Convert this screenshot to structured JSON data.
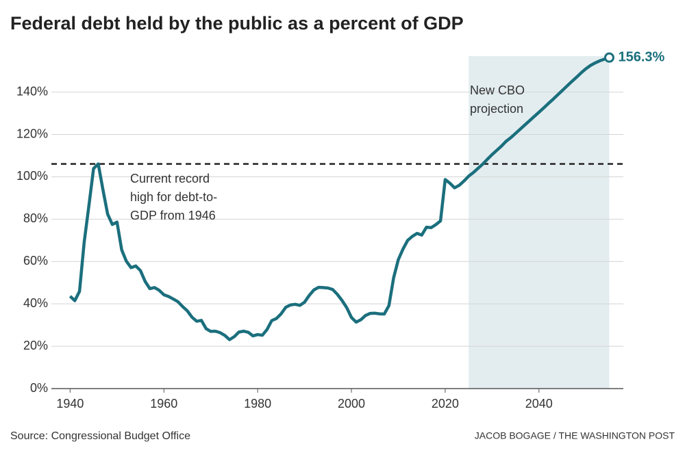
{
  "chart_data": {
    "type": "line",
    "title": "Federal debt held by the public as a percent of GDP",
    "x": [
      1940,
      1941,
      1942,
      1943,
      1944,
      1945,
      1946,
      1947,
      1948,
      1949,
      1950,
      1951,
      1952,
      1953,
      1954,
      1955,
      1956,
      1957,
      1958,
      1959,
      1960,
      1961,
      1962,
      1963,
      1964,
      1965,
      1966,
      1967,
      1968,
      1969,
      1970,
      1971,
      1972,
      1973,
      1974,
      1975,
      1976,
      1977,
      1978,
      1979,
      1980,
      1981,
      1982,
      1983,
      1984,
      1985,
      1986,
      1987,
      1988,
      1989,
      1990,
      1991,
      1992,
      1993,
      1994,
      1995,
      1996,
      1997,
      1998,
      1999,
      2000,
      2001,
      2002,
      2003,
      2004,
      2005,
      2006,
      2007,
      2008,
      2009,
      2010,
      2011,
      2012,
      2013,
      2014,
      2015,
      2016,
      2017,
      2018,
      2019,
      2020,
      2021,
      2022,
      2023,
      2024,
      2025,
      2026,
      2027,
      2028,
      2029,
      2030,
      2031,
      2032,
      2033,
      2034,
      2035,
      2036,
      2037,
      2038,
      2039,
      2040,
      2041,
      2042,
      2043,
      2044,
      2045,
      2046,
      2047,
      2048,
      2049,
      2050,
      2051,
      2052,
      2053,
      2054,
      2055
    ],
    "values": [
      43.6,
      41.5,
      45.9,
      69.2,
      86.3,
      103.9,
      106.1,
      93.9,
      82.4,
      77.5,
      78.6,
      65.5,
      60.1,
      57.1,
      57.9,
      55.7,
      50.6,
      47.2,
      47.7,
      46.4,
      44.3,
      43.5,
      42.3,
      41.0,
      38.7,
      36.7,
      33.7,
      31.8,
      32.2,
      28.3,
      27.0,
      27.1,
      26.4,
      25.1,
      23.1,
      24.5,
      26.7,
      27.1,
      26.6,
      24.9,
      25.5,
      25.2,
      27.9,
      32.1,
      33.1,
      35.3,
      38.4,
      39.5,
      39.8,
      39.3,
      40.8,
      44.0,
      46.6,
      47.8,
      47.7,
      47.5,
      46.8,
      44.5,
      41.6,
      38.2,
      33.6,
      31.4,
      32.5,
      34.5,
      35.5,
      35.6,
      35.3,
      35.2,
      39.2,
      52.3,
      60.9,
      65.9,
      70.0,
      71.9,
      73.3,
      72.5,
      76.2,
      76.0,
      77.4,
      79.2,
      98.7,
      97.0,
      94.8,
      96.0,
      98.0,
      100.3,
      102,
      104,
      106,
      108.3,
      110.5,
      112.5,
      114.5,
      116.8,
      118.5,
      120.5,
      122.5,
      124.5,
      126.5,
      128.5,
      130.5,
      132.5,
      134.6,
      136.6,
      138.7,
      140.8,
      142.9,
      145,
      147,
      149.1,
      151,
      152.6,
      153.8,
      154.8,
      155.6,
      156.3
    ],
    "value_labels": [
      null,
      null,
      null,
      null,
      null,
      null,
      null,
      null,
      null,
      null,
      null,
      null,
      null,
      null,
      null,
      null,
      null,
      null,
      null,
      null,
      null,
      null,
      null,
      null,
      null,
      null,
      null,
      null,
      null,
      null,
      null,
      null,
      null,
      null,
      null,
      null,
      null,
      null,
      null,
      null,
      null,
      null,
      null,
      null,
      null,
      null,
      null,
      null,
      null,
      null,
      null,
      null,
      null,
      null,
      null,
      null,
      null,
      null,
      null,
      null,
      null,
      null,
      null,
      null,
      null,
      null,
      null,
      null,
      null,
      null,
      null,
      null,
      null,
      null,
      null,
      null,
      null,
      null,
      null,
      null,
      null,
      null,
      null,
      null,
      null,
      null,
      null,
      null,
      null,
      null,
      null,
      null,
      null,
      null,
      null,
      null,
      null,
      null,
      null,
      null,
      null,
      null,
      null,
      null,
      null,
      null,
      null,
      null,
      null,
      null,
      null,
      null,
      null,
      null,
      null,
      "156.3%"
    ],
    "color": "#1b6f7d",
    "shade_color": "#e3edf0",
    "shaded_range": [
      2025,
      2055
    ],
    "xlim": [
      1936,
      2058
    ],
    "ylim": [
      0,
      157
    ],
    "xticks": [
      1940,
      1960,
      1980,
      2000,
      2020,
      2040
    ],
    "yticks": [
      {
        "value": 0,
        "label": "0%"
      },
      {
        "value": 20,
        "label": "20%"
      },
      {
        "value": 40,
        "label": "40%"
      },
      {
        "value": 60,
        "label": "60%"
      },
      {
        "value": 80,
        "label": "80%"
      },
      {
        "value": 100,
        "label": "100%"
      },
      {
        "value": 120,
        "label": "120%"
      },
      {
        "value": 140,
        "label": "140%"
      }
    ],
    "grid": true,
    "record_annotation": [
      "Current record",
      "high for debt-to-",
      "GDP from 1946"
    ],
    "projection_annotation": [
      "New CBO",
      "projection"
    ],
    "source": "Source: Congressional Budget Office",
    "credit": "JACOB BOGAGE / THE WASHINGTON POST"
  }
}
